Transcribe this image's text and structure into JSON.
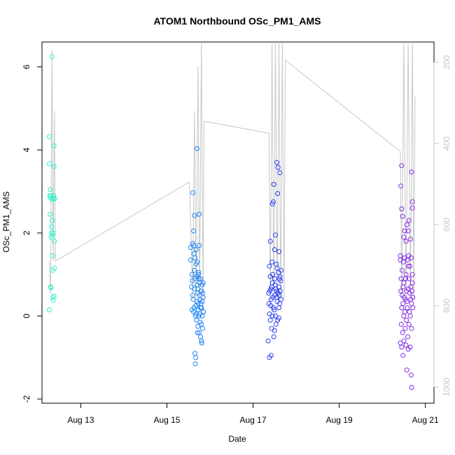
{
  "chart_data": {
    "type": "scatter",
    "title": "ATOM1 Northbound OSc_PM1_AMS",
    "xlabel": "Date",
    "ylabel": "OSc_PM1_AMS",
    "x_ticks": [
      "Aug 13",
      "Aug 15",
      "Aug 17",
      "Aug 19",
      "Aug 21"
    ],
    "x_tick_values": [
      13,
      15,
      17,
      19,
      21
    ],
    "xlim": [
      12.1,
      21.2
    ],
    "y_ticks": [
      "-2",
      "0",
      "2",
      "4",
      "6"
    ],
    "y_tick_values": [
      -2,
      0,
      2,
      4,
      6
    ],
    "ylim": [
      -2.1,
      6.6
    ],
    "y2_ticks": [
      "200",
      "400",
      "600",
      "800",
      "1000"
    ],
    "y2_tick_values": [
      200,
      400,
      600,
      800,
      1000
    ],
    "y2lim": [
      1040,
      150
    ],
    "y2_reversed": true,
    "grid": false,
    "colors": {
      "gradient": [
        "#2ef2c8",
        "#1ad0f4",
        "#16a8f8",
        "#2357f0",
        "#2a33f2",
        "#5a28ee",
        "#8a2be2"
      ],
      "secondary_line": "#c8c8c8"
    },
    "series": [
      {
        "points": [
          [
            12.27,
            0.15
          ],
          [
            12.27,
            4.32
          ],
          [
            12.27,
            3.67
          ],
          [
            12.29,
            3.05
          ],
          [
            12.29,
            2.85
          ],
          [
            12.29,
            2.45
          ],
          [
            12.31,
            2.9
          ],
          [
            12.31,
            0.68
          ],
          [
            12.32,
            2.15
          ],
          [
            12.32,
            2.0
          ],
          [
            12.33,
            2.8
          ],
          [
            12.34,
            2.3
          ],
          [
            12.34,
            1.95
          ],
          [
            12.35,
            1.45
          ],
          [
            12.35,
            0.45
          ],
          [
            12.36,
            0.38
          ],
          [
            12.37,
            2.83
          ],
          [
            12.37,
            2.9
          ],
          [
            12.38,
            4.1
          ],
          [
            12.38,
            3.6
          ],
          [
            12.39,
            1.8
          ],
          [
            12.39,
            1.15
          ],
          [
            12.4,
            2.83
          ],
          [
            12.33,
            6.25
          ],
          [
            12.31,
            1.9
          ],
          [
            12.35,
            1.1
          ],
          [
            12.28,
            2.9
          ],
          [
            12.3,
            0.7
          ],
          [
            12.36,
            2.0
          ],
          [
            12.38,
            0.48
          ]
        ]
      },
      {
        "points": [
          [
            15.55,
            1.65
          ],
          [
            15.55,
            1.35
          ],
          [
            15.57,
            0.7
          ],
          [
            15.58,
            0.15
          ],
          [
            15.6,
            2.97
          ],
          [
            15.6,
            1.75
          ],
          [
            15.62,
            1.7
          ],
          [
            15.62,
            2.05
          ],
          [
            15.63,
            1.5
          ],
          [
            15.64,
            2.42
          ],
          [
            15.64,
            1.1
          ],
          [
            15.65,
            1.4
          ],
          [
            15.65,
            -0.9
          ],
          [
            15.66,
            -1.15
          ],
          [
            15.67,
            -1.0
          ],
          [
            15.68,
            1.6
          ],
          [
            15.68,
            1.25
          ],
          [
            15.69,
            0.95
          ],
          [
            15.7,
            4.03
          ],
          [
            15.7,
            1.3
          ],
          [
            15.71,
            0.55
          ],
          [
            15.72,
            0.3
          ],
          [
            15.73,
            1.0
          ],
          [
            15.74,
            0.9
          ],
          [
            15.75,
            2.45
          ],
          [
            15.75,
            1.7
          ],
          [
            15.76,
            0.8
          ],
          [
            15.77,
            0.4
          ],
          [
            15.78,
            0.2
          ],
          [
            15.79,
            0.6
          ],
          [
            15.8,
            -0.2
          ],
          [
            15.8,
            -0.6
          ],
          [
            15.82,
            0.75
          ],
          [
            15.82,
            0.0
          ],
          [
            15.83,
            -0.3
          ],
          [
            15.84,
            0.8
          ],
          [
            15.85,
            0.1
          ],
          [
            15.6,
            0.5
          ],
          [
            15.63,
            0.2
          ],
          [
            15.66,
            0.0
          ],
          [
            15.69,
            -0.1
          ],
          [
            15.72,
            -0.25
          ],
          [
            15.75,
            -0.4
          ],
          [
            15.78,
            -0.5
          ],
          [
            15.81,
            -0.65
          ],
          [
            15.59,
            0.85
          ],
          [
            15.61,
            0.4
          ],
          [
            15.64,
            0.65
          ],
          [
            15.67,
            0.25
          ],
          [
            15.7,
            0.75
          ],
          [
            15.73,
            0.15
          ],
          [
            15.76,
            0.5
          ],
          [
            15.79,
            0.3
          ],
          [
            15.83,
            0.55
          ],
          [
            15.58,
            1.0
          ],
          [
            15.71,
            -0.4
          ],
          [
            15.74,
            0.0
          ],
          [
            15.77,
            -0.15
          ],
          [
            15.8,
            0.2
          ],
          [
            15.84,
            0.45
          ],
          [
            15.62,
            0.1
          ],
          [
            15.66,
            0.9
          ],
          [
            15.7,
            0.35
          ],
          [
            15.74,
            1.05
          ],
          [
            15.78,
            0.9
          ],
          [
            15.82,
            0.35
          ],
          [
            15.68,
            0.05
          ],
          [
            15.72,
            0.65
          ],
          [
            15.76,
            0.05
          ],
          [
            15.8,
            0.6
          ]
        ]
      },
      {
        "points": [
          [
            17.35,
            -0.6
          ],
          [
            17.38,
            -1.0
          ],
          [
            17.38,
            1.2
          ],
          [
            17.4,
            1.8
          ],
          [
            17.42,
            -0.95
          ],
          [
            17.45,
            2.7
          ],
          [
            17.47,
            2.75
          ],
          [
            17.48,
            3.17
          ],
          [
            17.5,
            1.6
          ],
          [
            17.52,
            1.95
          ],
          [
            17.55,
            3.7
          ],
          [
            17.57,
            2.95
          ],
          [
            17.58,
            3.58
          ],
          [
            17.6,
            1.55
          ],
          [
            17.62,
            3.45
          ],
          [
            17.4,
            0.95
          ],
          [
            17.45,
            0.8
          ],
          [
            17.5,
            0.5
          ],
          [
            17.55,
            0.6
          ],
          [
            17.6,
            0.7
          ],
          [
            17.65,
            1.1
          ],
          [
            17.42,
            0.4
          ],
          [
            17.47,
            0.2
          ],
          [
            17.52,
            0.0
          ],
          [
            17.57,
            -0.1
          ],
          [
            17.62,
            0.3
          ],
          [
            17.38,
            0.05
          ],
          [
            17.43,
            -0.3
          ],
          [
            17.48,
            -0.5
          ],
          [
            17.53,
            -0.2
          ],
          [
            17.36,
            0.55
          ],
          [
            17.41,
            0.65
          ],
          [
            17.46,
            0.45
          ],
          [
            17.51,
            0.75
          ],
          [
            17.56,
            0.35
          ],
          [
            17.61,
            0.9
          ],
          [
            17.64,
            0.85
          ],
          [
            17.44,
            1.3
          ],
          [
            17.54,
            1.25
          ],
          [
            17.59,
            1.05
          ],
          [
            17.37,
            0.3
          ],
          [
            17.49,
            0.15
          ],
          [
            17.58,
            0.55
          ],
          [
            17.63,
            0.6
          ],
          [
            17.39,
            0.6
          ],
          [
            17.5,
            0.9
          ],
          [
            17.6,
            0.2
          ],
          [
            17.45,
            0.0
          ],
          [
            17.55,
            0.45
          ],
          [
            17.65,
            0.4
          ],
          [
            17.4,
            -0.1
          ],
          [
            17.5,
            -0.35
          ],
          [
            17.6,
            -0.05
          ],
          [
            17.43,
            0.7
          ],
          [
            17.53,
            0.65
          ],
          [
            17.63,
            0.95
          ],
          [
            17.46,
            1.0
          ],
          [
            17.56,
            1.15
          ],
          [
            17.41,
            0.25
          ],
          [
            17.61,
            0.5
          ]
        ]
      },
      {
        "points": [
          [
            20.42,
            1.45
          ],
          [
            20.42,
            1.35
          ],
          [
            20.45,
            2.58
          ],
          [
            20.45,
            3.62
          ],
          [
            20.43,
            3.13
          ],
          [
            20.47,
            2.4
          ],
          [
            20.5,
            1.9
          ],
          [
            20.52,
            2.05
          ],
          [
            20.55,
            1.8
          ],
          [
            20.57,
            2.2
          ],
          [
            20.6,
            2.05
          ],
          [
            20.62,
            2.3
          ],
          [
            20.65,
            1.85
          ],
          [
            20.68,
            3.47
          ],
          [
            20.7,
            2.6
          ],
          [
            20.7,
            2.75
          ],
          [
            20.42,
            -0.65
          ],
          [
            20.45,
            -0.75
          ],
          [
            20.48,
            -0.95
          ],
          [
            20.5,
            -0.6
          ],
          [
            20.55,
            -0.7
          ],
          [
            20.57,
            -1.3
          ],
          [
            20.6,
            -0.8
          ],
          [
            20.65,
            -0.75
          ],
          [
            20.67,
            -1.42
          ],
          [
            20.68,
            -1.72
          ],
          [
            20.44,
            0.9
          ],
          [
            20.46,
            0.5
          ],
          [
            20.48,
            0.3
          ],
          [
            20.5,
            0.8
          ],
          [
            20.52,
            0.1
          ],
          [
            20.54,
            0.4
          ],
          [
            20.56,
            0.6
          ],
          [
            20.58,
            0.2
          ],
          [
            20.6,
            1.2
          ],
          [
            20.62,
            0.9
          ],
          [
            20.64,
            0.55
          ],
          [
            20.66,
            0.7
          ],
          [
            20.68,
            0.3
          ],
          [
            20.7,
            1.0
          ],
          [
            20.44,
            -0.2
          ],
          [
            20.47,
            -0.4
          ],
          [
            20.5,
            0.0
          ],
          [
            20.53,
            -0.3
          ],
          [
            20.56,
            -0.1
          ],
          [
            20.59,
            -0.5
          ],
          [
            20.62,
            -0.2
          ],
          [
            20.65,
            0.0
          ],
          [
            20.68,
            -0.3
          ],
          [
            20.71,
            0.2
          ],
          [
            20.43,
            0.6
          ],
          [
            20.46,
            1.1
          ],
          [
            20.49,
            1.3
          ],
          [
            20.52,
            1.4
          ],
          [
            20.55,
            1.0
          ],
          [
            20.58,
            1.35
          ],
          [
            20.61,
            1.45
          ],
          [
            20.64,
            1.2
          ],
          [
            20.67,
            1.4
          ],
          [
            20.7,
            0.8
          ],
          [
            20.45,
            0.2
          ],
          [
            20.48,
            0.7
          ],
          [
            20.51,
            0.45
          ],
          [
            20.54,
            0.9
          ],
          [
            20.57,
            0.35
          ],
          [
            20.6,
            0.65
          ],
          [
            20.63,
            0.1
          ],
          [
            20.66,
            0.4
          ],
          [
            20.69,
            0.6
          ],
          [
            20.71,
            0.45
          ]
        ]
      }
    ],
    "secondary_line": [
      [
        12.27,
        690
      ],
      [
        12.3,
        770
      ],
      [
        12.33,
        170
      ],
      [
        12.36,
        690
      ],
      [
        12.39,
        320
      ],
      [
        12.41,
        690
      ],
      [
        15.52,
        495
      ],
      [
        15.6,
        785
      ],
      [
        15.64,
        320
      ],
      [
        15.68,
        785
      ],
      [
        15.72,
        210
      ],
      [
        15.76,
        785
      ],
      [
        15.8,
        150
      ],
      [
        15.84,
        785
      ],
      [
        15.86,
        345
      ],
      [
        17.37,
        375
      ],
      [
        17.4,
        785
      ],
      [
        17.44,
        150
      ],
      [
        17.48,
        785
      ],
      [
        17.52,
        150
      ],
      [
        17.56,
        785
      ],
      [
        17.6,
        150
      ],
      [
        17.64,
        785
      ],
      [
        17.68,
        150
      ],
      [
        17.72,
        785
      ],
      [
        17.75,
        195
      ],
      [
        20.42,
        420
      ],
      [
        20.45,
        785
      ],
      [
        20.5,
        150
      ],
      [
        20.55,
        785
      ],
      [
        20.6,
        150
      ],
      [
        20.65,
        785
      ],
      [
        20.7,
        150
      ],
      [
        20.73,
        785
      ],
      [
        20.76,
        285
      ]
    ]
  }
}
